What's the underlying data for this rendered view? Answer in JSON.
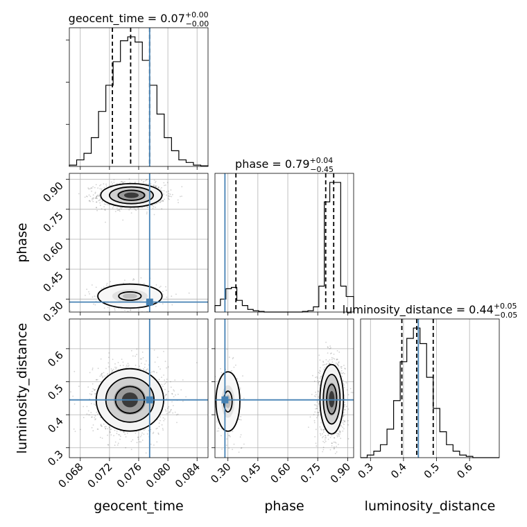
{
  "chart_data": {
    "type": "corner",
    "parameters": [
      "geocent_time",
      "phase",
      "luminosity_distance"
    ],
    "ranges": {
      "geocent_time": [
        0.0665,
        0.0855
      ],
      "phase": [
        0.235,
        0.93
      ],
      "luminosity_distance": [
        0.27,
        0.69
      ]
    },
    "truths": {
      "geocent_time": 0.0775,
      "phase": 0.285,
      "luminosity_distance": 0.445
    },
    "truth_color": "#4682b4",
    "grid": true,
    "diagonal": [
      {
        "parameter": "geocent_time",
        "title": {
          "label": "geocent_time = 0.07",
          "plus": "+0.00",
          "minus": "−0.00"
        },
        "quantiles": [
          0.0724,
          0.0749,
          0.0775
        ],
        "bin_edges": [
          0.0665,
          0.0675,
          0.0685,
          0.0695,
          0.0705,
          0.0715,
          0.0725,
          0.0735,
          0.0745,
          0.0755,
          0.0765,
          0.0775,
          0.0785,
          0.0795,
          0.0805,
          0.0815,
          0.0825,
          0.0835,
          0.0845,
          0.0855
        ],
        "counts": [
          1,
          5,
          10,
          22,
          42,
          62,
          80,
          96,
          99,
          95,
          81,
          62,
          40,
          22,
          12,
          5,
          3,
          1,
          0.5
        ]
      },
      {
        "parameter": "phase",
        "title": {
          "label": "phase = 0.79",
          "plus": "+0.04",
          "minus": "−0.45"
        },
        "quantiles": [
          0.34,
          0.79,
          0.83
        ],
        "bin_edges": [
          0.235,
          0.2624,
          0.2898,
          0.3172,
          0.3446,
          0.372,
          0.3994,
          0.4268,
          0.4542,
          0.4816,
          0.509,
          0.5364,
          0.5638,
          0.5912,
          0.6186,
          0.646,
          0.6734,
          0.7008,
          0.7282,
          0.7556,
          0.783,
          0.8104,
          0.8378,
          0.8652,
          0.8926,
          0.93
        ],
        "counts": [
          5,
          10,
          18,
          19,
          9,
          5,
          2,
          1,
          0.5,
          0,
          0,
          0,
          0,
          0,
          0,
          0,
          0.5,
          1,
          4,
          20,
          85,
          100,
          100,
          20,
          12
        ]
      },
      {
        "parameter": "luminosity_distance",
        "title": {
          "label": "luminosity_distance = 0.44",
          "plus": "+0.05",
          "minus": "−0.05"
        },
        "quantiles": [
          0.395,
          0.44,
          0.49
        ],
        "bin_edges": [
          0.27,
          0.29,
          0.31,
          0.33,
          0.35,
          0.37,
          0.39,
          0.41,
          0.43,
          0.45,
          0.47,
          0.49,
          0.51,
          0.53,
          0.55,
          0.57,
          0.59,
          0.61,
          0.63,
          0.65,
          0.67,
          0.69
        ],
        "counts": [
          0,
          2,
          5,
          10,
          22,
          44,
          74,
          92,
          100,
          88,
          62,
          38,
          20,
          10,
          5,
          2,
          1,
          0,
          0,
          0,
          0
        ]
      }
    ],
    "pairs": [
      {
        "x": "geocent_time",
        "y": "phase",
        "modes": [
          {
            "cx": 0.075,
            "cy": 0.82,
            "sx": 0.002,
            "sy": 0.028,
            "weight": 0.82
          },
          {
            "cx": 0.0748,
            "cy": 0.315,
            "sx": 0.0022,
            "sy": 0.03,
            "weight": 0.18
          }
        ]
      },
      {
        "x": "geocent_time",
        "y": "luminosity_distance",
        "modes": [
          {
            "cx": 0.0748,
            "cy": 0.445,
            "sx": 0.0022,
            "sy": 0.045,
            "weight": 1
          }
        ]
      },
      {
        "x": "phase",
        "y": "luminosity_distance",
        "modes": [
          {
            "cx": 0.82,
            "cy": 0.447,
            "sx": 0.028,
            "sy": 0.05,
            "weight": 0.82
          },
          {
            "cx": 0.3,
            "cy": 0.44,
            "sx": 0.03,
            "sy": 0.045,
            "weight": 0.18
          }
        ]
      }
    ],
    "ticks": {
      "geocent_time": {
        "values": [
          0.068,
          0.072,
          0.076,
          0.08,
          0.084
        ],
        "labels": [
          "0.068",
          "0.072",
          "0.076",
          "0.080",
          "0.084"
        ]
      },
      "phase": {
        "values": [
          0.3,
          0.45,
          0.6,
          0.75,
          0.9
        ],
        "labels": [
          "0.30",
          "0.45",
          "0.60",
          "0.75",
          "0.90"
        ]
      },
      "luminosity_distance": {
        "values": [
          0.3,
          0.4,
          0.5,
          0.6
        ],
        "labels": [
          "0.3",
          "0.4",
          "0.5",
          "0.6"
        ]
      }
    },
    "axis_labels": {
      "geocent_time": "geocent_time",
      "phase": "phase",
      "luminosity_distance": "luminosity_distance"
    }
  }
}
